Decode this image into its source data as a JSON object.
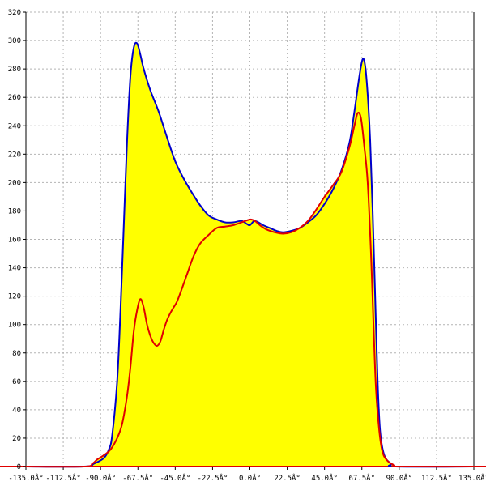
{
  "chart_data": {
    "type": "area",
    "title": "",
    "xlabel": "",
    "ylabel": "",
    "xlim": [
      -135,
      135
    ],
    "ylim": [
      0,
      320
    ],
    "grid": true,
    "x_ticks": [
      {
        "value": -135,
        "label": "-135.0Â°"
      },
      {
        "value": -112.5,
        "label": "-112.5Â°"
      },
      {
        "value": -90,
        "label": "-90.0Â°"
      },
      {
        "value": -67.5,
        "label": "-67.5Â°"
      },
      {
        "value": -45,
        "label": "-45.0Â°"
      },
      {
        "value": -22.5,
        "label": "-22.5Â°"
      },
      {
        "value": 0,
        "label": "0.0Â°"
      },
      {
        "value": 22.5,
        "label": "22.5Â°"
      },
      {
        "value": 45,
        "label": "45.0Â°"
      },
      {
        "value": 67.5,
        "label": "67.5Â°"
      },
      {
        "value": 90,
        "label": "90.0Â°"
      },
      {
        "value": 112.5,
        "label": "112.5Â°"
      },
      {
        "value": 135,
        "label": "135.0Â°"
      }
    ],
    "y_ticks": [
      {
        "value": 0,
        "label": "0"
      },
      {
        "value": 20,
        "label": "20"
      },
      {
        "value": 40,
        "label": "40"
      },
      {
        "value": 60,
        "label": "60"
      },
      {
        "value": 80,
        "label": "80"
      },
      {
        "value": 100,
        "label": "100"
      },
      {
        "value": 120,
        "label": "120"
      },
      {
        "value": 140,
        "label": "140"
      },
      {
        "value": 160,
        "label": "160"
      },
      {
        "value": 180,
        "label": "180"
      },
      {
        "value": 200,
        "label": "200"
      },
      {
        "value": 220,
        "label": "220"
      },
      {
        "value": 240,
        "label": "240"
      },
      {
        "value": 260,
        "label": "260"
      },
      {
        "value": 280,
        "label": "280"
      },
      {
        "value": 300,
        "label": "300"
      },
      {
        "value": 320,
        "label": "320"
      }
    ],
    "colors": {
      "fill": "#ffff00",
      "blue_line": "#0000cc",
      "red_line": "#e00000",
      "grid": "#b4b4b4",
      "axis": "#000000",
      "baseline": "#e00000"
    },
    "series": [
      {
        "color": "#0000cc",
        "filled": true,
        "points": [
          [
            -135,
            0
          ],
          [
            -100,
            0
          ],
          [
            -94,
            2
          ],
          [
            -88,
            6
          ],
          [
            -85,
            12
          ],
          [
            -83,
            22
          ],
          [
            -80,
            60
          ],
          [
            -78,
            110
          ],
          [
            -76,
            170
          ],
          [
            -74,
            230
          ],
          [
            -72,
            275
          ],
          [
            -70,
            295
          ],
          [
            -68,
            298
          ],
          [
            -66,
            290
          ],
          [
            -64,
            280
          ],
          [
            -60,
            265
          ],
          [
            -55,
            250
          ],
          [
            -50,
            232
          ],
          [
            -45,
            215
          ],
          [
            -40,
            203
          ],
          [
            -35,
            193
          ],
          [
            -30,
            184
          ],
          [
            -25,
            177
          ],
          [
            -20,
            174
          ],
          [
            -15,
            172
          ],
          [
            -10,
            172
          ],
          [
            -5,
            173
          ],
          [
            -2,
            171
          ],
          [
            0,
            170
          ],
          [
            3,
            173
          ],
          [
            8,
            170
          ],
          [
            12,
            168
          ],
          [
            16,
            166
          ],
          [
            20,
            165
          ],
          [
            25,
            166
          ],
          [
            30,
            168
          ],
          [
            35,
            172
          ],
          [
            40,
            177
          ],
          [
            45,
            185
          ],
          [
            50,
            195
          ],
          [
            55,
            208
          ],
          [
            60,
            228
          ],
          [
            63,
            250
          ],
          [
            66,
            275
          ],
          [
            68,
            287
          ],
          [
            69.5,
            282
          ],
          [
            71,
            262
          ],
          [
            72.5,
            230
          ],
          [
            74,
            180
          ],
          [
            75.5,
            120
          ],
          [
            77,
            60
          ],
          [
            78.5,
            25
          ],
          [
            81,
            8
          ],
          [
            85,
            2
          ],
          [
            88,
            0
          ],
          [
            135,
            0
          ]
        ]
      },
      {
        "color": "#e00000",
        "filled": true,
        "points": [
          [
            -135,
            0
          ],
          [
            -100,
            0
          ],
          [
            -95,
            2
          ],
          [
            -92,
            5
          ],
          [
            -88,
            8
          ],
          [
            -84,
            12
          ],
          [
            -80,
            20
          ],
          [
            -77,
            30
          ],
          [
            -74,
            50
          ],
          [
            -72,
            70
          ],
          [
            -70,
            95
          ],
          [
            -68,
            110
          ],
          [
            -66,
            118
          ],
          [
            -64,
            112
          ],
          [
            -62,
            100
          ],
          [
            -60,
            92
          ],
          [
            -58,
            87
          ],
          [
            -56,
            85
          ],
          [
            -54,
            88
          ],
          [
            -52,
            96
          ],
          [
            -50,
            103
          ],
          [
            -48,
            108
          ],
          [
            -46,
            112
          ],
          [
            -44,
            116
          ],
          [
            -42,
            122
          ],
          [
            -38,
            135
          ],
          [
            -34,
            148
          ],
          [
            -30,
            157
          ],
          [
            -25,
            163
          ],
          [
            -20,
            168
          ],
          [
            -15,
            169
          ],
          [
            -10,
            170
          ],
          [
            -5,
            172
          ],
          [
            0,
            174
          ],
          [
            3,
            173
          ],
          [
            6,
            170
          ],
          [
            10,
            167
          ],
          [
            15,
            165
          ],
          [
            20,
            164
          ],
          [
            25,
            165
          ],
          [
            30,
            168
          ],
          [
            35,
            173
          ],
          [
            40,
            181
          ],
          [
            45,
            190
          ],
          [
            50,
            198
          ],
          [
            55,
            207
          ],
          [
            60,
            225
          ],
          [
            63,
            240
          ],
          [
            65,
            249
          ],
          [
            67,
            245
          ],
          [
            69,
            225
          ],
          [
            71,
            200
          ],
          [
            73,
            150
          ],
          [
            74.5,
            100
          ],
          [
            76,
            55
          ],
          [
            78,
            25
          ],
          [
            80,
            10
          ],
          [
            83,
            4
          ],
          [
            87,
            1
          ],
          [
            90,
            0
          ],
          [
            135,
            0
          ]
        ]
      }
    ]
  }
}
